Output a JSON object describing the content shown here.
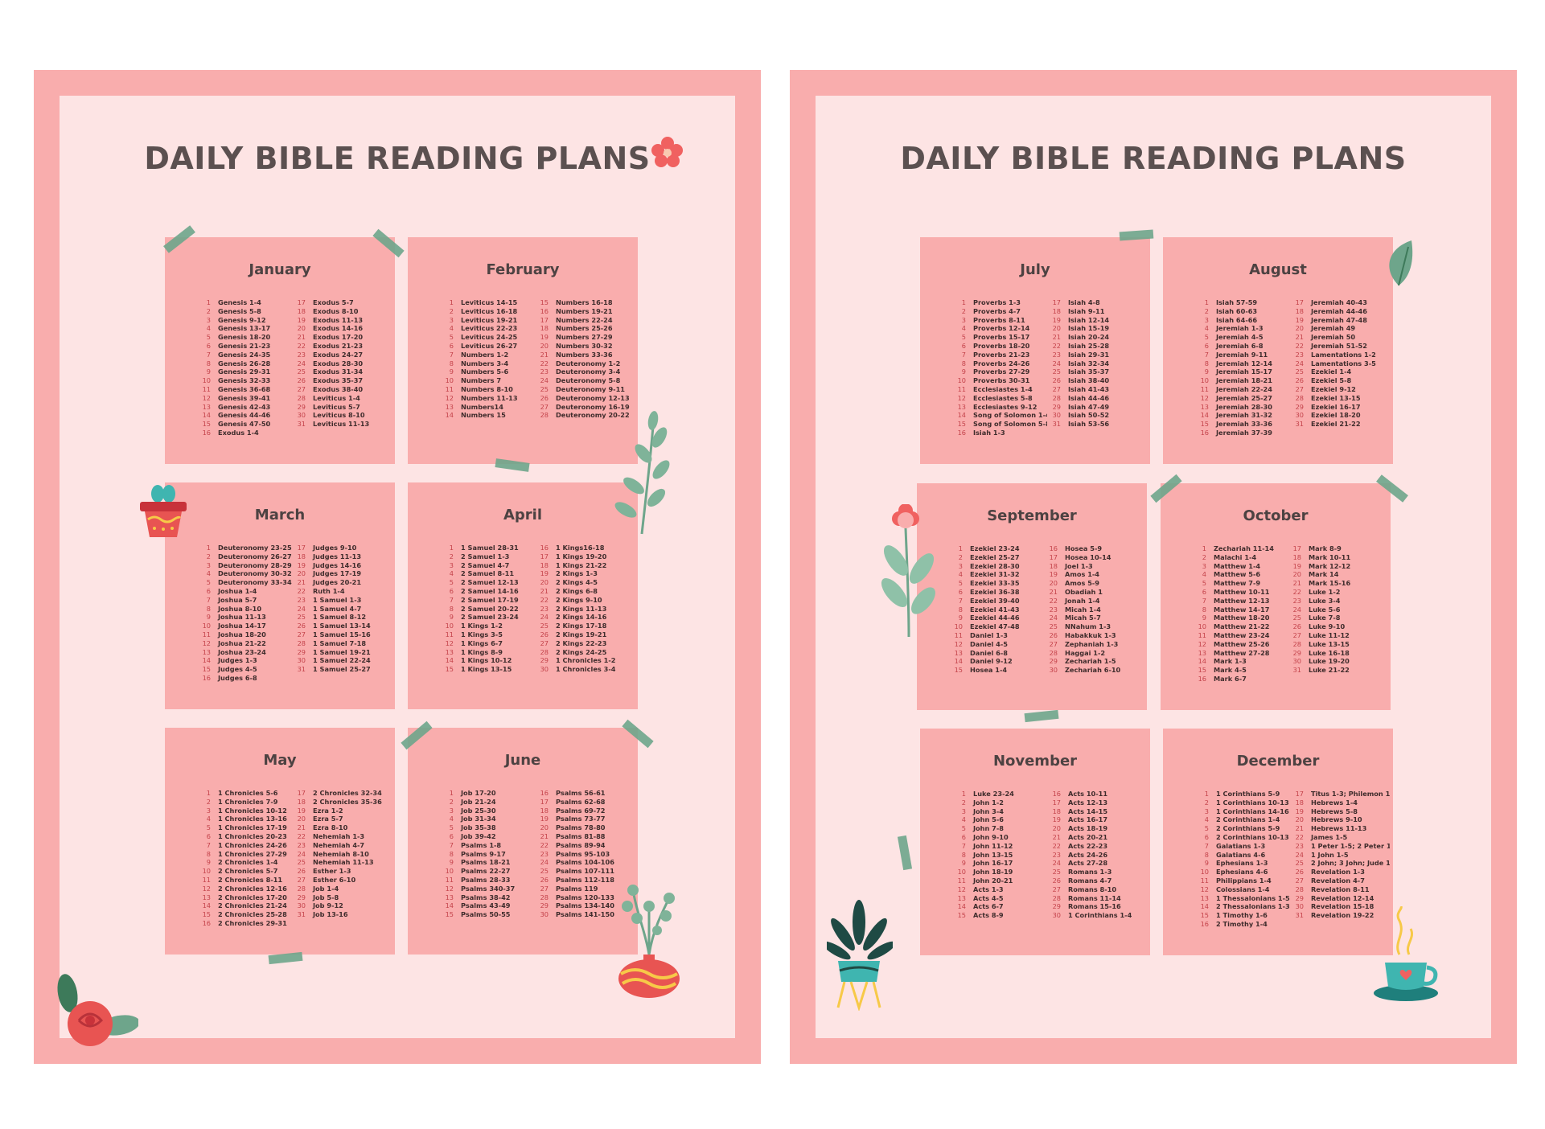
{
  "pages": [
    {
      "title": "DAILY BIBLE READING PLANS",
      "months": [
        {
          "name": "January",
          "left": [
            "Genesis 1-4",
            "Genesis 5-8",
            "Genesis 9-12",
            "Genesis 13-17",
            "Genesis 18-20",
            "Genesis 21-23",
            "Genesis 24-35",
            "Genesis 26-28",
            "Genesis 29-31",
            "Genesis 32-33",
            "Genesis 36-68",
            "Genesis 39-41",
            "Genesis 42-43",
            "Genesis 44-46",
            "Genesis 47-50",
            "Exodus 1-4"
          ],
          "right": [
            "Exodus 5-7",
            "Exodus 8-10",
            "Exodus 11-13",
            "Exodus 14-16",
            "Exodus 17-20",
            "Exodus 21-23",
            "Exodus 24-27",
            "Exodus 28-30",
            "Exodus 31-34",
            "Exodus 35-37",
            "Exodus 38-40",
            "Leviticus 1-4",
            "Leviticus 5-7",
            "Leviticus 8-10",
            "Leviticus 11-13"
          ]
        },
        {
          "name": "February",
          "left": [
            "Leviticus 14-15",
            "Leviticus 16-18",
            "Leviticus 19-21",
            "Leviticus 22-23",
            "Leviticus 24-25",
            "Leviticus 26-27",
            "Numbers 1-2",
            "Numbers 3-4",
            "Numbers 5-6",
            "Numbers 7",
            "Numbers 8-10",
            "Numbers 11-13",
            "Numbers14",
            "Numbers 15"
          ],
          "right": [
            "Numbers 16-18",
            "Numbers 19-21",
            "Numbers 22-24",
            "Numbers 25-26",
            "Numbers 27-29",
            "Numbers 30-32",
            "Numbers 33-36",
            "Deuteronomy 1-2",
            "Deuteronomy 3-4",
            "Deuteronomy 5-8",
            "Deuteronomy 9-11",
            "Deuteronomy 12-13",
            "Deuteronomy 16-19",
            "Deuteronomy 20-22"
          ]
        },
        {
          "name": "March",
          "left": [
            "Deuteronomy 23-25",
            "Deuteronomy 26-27",
            "Deuteronomy 28-29",
            "Deuteronomy 30-32",
            "Deuteronomy 33-34",
            "Joshua 1-4",
            "Joshua 5-7",
            "Joshua 8-10",
            "Joshua 11-13",
            "Joshua 14-17",
            "Joshua 18-20",
            "Joshua 21-22",
            "Joshua 23-24",
            "Judges 1-3",
            "Judges 4-5",
            "Judges 6-8"
          ],
          "right": [
            "Judges 9-10",
            "Judges 11-13",
            "Judges 14-16",
            "Judges 17-19",
            "Judges 20-21",
            "Ruth 1-4",
            "1 Samuel 1-3",
            "1 Samuel 4-7",
            "1 Samuel 8-12",
            "1 Samuel 13-14",
            "1 Samuel 15-16",
            "1 Samuel 7-18",
            "1 Samuel 19-21",
            "1 Samuel 22-24",
            "1 Samuel 25-27"
          ]
        },
        {
          "name": "April",
          "left": [
            "1 Samuel 28-31",
            "2 Samuel 1-3",
            "2 Samuel  4-7",
            "2 Samuel  8-11",
            "2 Samuel 12-13",
            "2 Samuel  14-16",
            "2 Samuel  17-19",
            "2 Samuel  20-22",
            "2 Samuel  23-24",
            "1 Kings 1-2",
            "1 Kings 3-5",
            "1 Kings 6-7",
            "1 Kings 8-9",
            "1 Kings 10-12",
            "1 Kings 13-15"
          ],
          "right": [
            "1 Kings16-18",
            "1 Kings 19-20",
            "1 Kings 21-22",
            "2 Kings 1-3",
            "2 Kings 4-5",
            "2 Kings 6-8",
            "2 Kings 9-10",
            "2 Kings 11-13",
            "2 Kings 14-16",
            "2 Kings 17-18",
            "2 Kings 19-21",
            "2 Kings 22-23",
            "2 Kings 24-25",
            "1 Chronicles 1-2",
            "1 Chronicles 3-4"
          ]
        },
        {
          "name": "May",
          "left": [
            "1 Chronicles 5-6",
            "1 Chronicles 7-9",
            "1 Chronicles 10-12",
            "1 Chronicles 13-16",
            "1 Chronicles 17-19",
            "1 Chronicles 20-23",
            "1 Chronicles 24-26",
            "1 Chronicles 27-29",
            "2 Chronicles 1-4",
            "2 Chronicles 5-7",
            "2 Chronicles 8-11",
            "2 Chronicles 12-16",
            "2 Chronicles 17-20",
            "2 Chronicles 21-24",
            "2 Chronicles 25-28",
            "2 Chronicles 29-31"
          ],
          "right": [
            "2 Chronicles 32-34",
            "2 Chronicles 35-36",
            "Ezra 1-2",
            "Ezra 5-7",
            "Ezra 8-10",
            "Nehemiah 1-3",
            "Nehemiah 4-7",
            "Nehemiah 8-10",
            "Nehemiah 11-13",
            "Esther 1-3",
            "Esther 6-10",
            "Job 1-4",
            "Job 5-8",
            "Job 9-12",
            "Job 13-16"
          ]
        },
        {
          "name": "June",
          "left": [
            "Job 17-20",
            "Job  21-24",
            "Job  25-30",
            "Job  31-34",
            "Job  35-38",
            "Job  39-42",
            "Psalms 1-8",
            "Psalms 9-17",
            "Psalms 18-21",
            "Psalms 22-27",
            "Psalms 28-33",
            "Psalms 340-37",
            "Psalms 38-42",
            "Psalms 43-49",
            "Psalms 50-55"
          ],
          "right": [
            "Psalms 56-61",
            "Psalms 62-68",
            "Psalms 69-72",
            "Psalms 73-77",
            "Psalms 78-80",
            "Psalms 81-88",
            "Psalms 89-94",
            "Psalms 95-103",
            "Psalms 104-106",
            "Psalms 107-111",
            "Psalms 112-118",
            "Psalms 119",
            "Psalms 120-133",
            "Psalms 134-140",
            "Psalms 141-150"
          ]
        }
      ]
    },
    {
      "title": "DAILY BIBLE READING PLANS",
      "months": [
        {
          "name": "July",
          "left": [
            "Proverbs 1-3",
            "Proverbs 4-7",
            "Proverbs 8-11",
            "Proverbs 12-14",
            "Proverbs 15-17",
            "Proverbs 18-20",
            "Proverbs 21-23",
            "Proverbs 24-26",
            "Proverbs 27-29",
            "Proverbs 30-31",
            "Ecclesiastes 1-4",
            "Ecclesiastes 5-8",
            "Ecclesiastes 9-12",
            "Song of Solomon 1-4",
            "Song of Solomon  5-8",
            "Isiah 1-3"
          ],
          "right": [
            "Isiah 4-8",
            "Isiah 9-11",
            "Isiah 12-14",
            "Isiah 15-19",
            "Isiah 20-24",
            "Isiah 25-28",
            "Isiah 29-31",
            "Isiah 32-34",
            "Isiah 35-37",
            "Isiah 38-40",
            "Isiah 41-43",
            "Isiah 44-46",
            "Isiah 47-49",
            "Isiah 50-52",
            "Isiah 53-56"
          ]
        },
        {
          "name": "August",
          "left": [
            "Isiah 57-59",
            "Isiah 60-63",
            "Isiah 64-66",
            "Jeremiah 1-3",
            "Jeremiah 4-5",
            "Jeremiah 6-8",
            "Jeremiah 9-11",
            "Jeremiah 12-14",
            "Jeremiah 15-17",
            "Jeremiah 18-21",
            "Jeremiah 22-24",
            "Jeremiah 25-27",
            "Jeremiah 28-30",
            "Jeremiah 31-32",
            "Jeremiah 33-36",
            "Jeremiah 37-39"
          ],
          "right": [
            "Jeremiah 40-43",
            "Jeremiah 44-46",
            "Jeremiah 47-48",
            "Jeremiah 49",
            "Jeremiah 50",
            "Jeremiah 51-52",
            "Lamentations 1-2",
            "Lamentations 3-5",
            "Ezekiel 1-4",
            "Ezekiel 5-8",
            "Ezekiel 9-12",
            "Ezekiel 13-15",
            "Ezekiel 16-17",
            "Ezekiel 18-20",
            "Ezekiel 21-22"
          ]
        },
        {
          "name": "September",
          "left": [
            "Ezekiel 23-24",
            "Ezekiel 25-27",
            "Ezekiel 28-30",
            "Ezekiel 31-32",
            "Ezekiel 33-35",
            "Ezekiel 36-38",
            "Ezekiel 39-40",
            "Ezekiel 41-43",
            "Ezekiel 44-46",
            "Ezekiel 47-48",
            "Daniel 1-3",
            "Daniel 4-5",
            "Daniel 6-8",
            "Daniel 9-12",
            "Hosea 1-4"
          ],
          "right": [
            "Hosea  5-9",
            "Hosea  10-14",
            "Joel 1-3",
            "Amos 1-4",
            "Amos 5-9",
            "Obadiah 1",
            "Jonah 1-4",
            "Micah 1-4",
            "Micah 5-7",
            "NNahum 1-3",
            "Habakkuk 1-3",
            "Zephaniah 1-3",
            "Haggai 1-2",
            "Zechariah 1-5",
            "Zechariah 6-10"
          ]
        },
        {
          "name": "October",
          "left": [
            "Zechariah 11-14",
            "Malachi 1-4",
            "Matthew 1-4",
            "Matthew 5-6",
            "Matthew 7-9",
            "Matthew 10-11",
            "Matthew 12-13",
            "Matthew 14-17",
            "Matthew 18-20",
            "Matthew 21-22",
            "Matthew 23-24",
            "Matthew 25-26",
            "Matthew 27-28",
            "Mark 1-3",
            "Mark 4-5",
            "Mark  6-7"
          ],
          "right": [
            "Mark  8-9",
            "Mark  10-11",
            "Mark  12-12",
            "Mark  14",
            "Mark  15-16",
            "Luke 1-2",
            "Luke 3-4",
            "Luke 5-6",
            "Luke 7-8",
            "Luke 9-10",
            "Luke 11-12",
            "Luke 13-15",
            "Luke 16-18",
            "Luke 19-20",
            "Luke 21-22"
          ]
        },
        {
          "name": "November",
          "left": [
            "Luke 23-24",
            "John 1-2",
            "John 3-4",
            "John 5-6",
            "John 7-8",
            "John 9-10",
            "John 11-12",
            "John 13-15",
            "John 16-17",
            "John 18-19",
            "John 20-21",
            "Acts 1-3",
            "Acts 4-5",
            "Acts 6-7",
            "Acts 8-9"
          ],
          "right": [
            "Acts 10-11",
            "Acts 12-13",
            "Acts 14-15",
            "Acts 16-17",
            "Acts 18-19",
            "Acts 20-21",
            "Acts 22-23",
            "Acts 24-26",
            "Acts 27-28",
            "Romans 1-3",
            "Romans 4-7",
            "Romans 8-10",
            "Romans 11-14",
            "Romans 15-16",
            "1 Corinthians 1-4"
          ]
        },
        {
          "name": "December",
          "left": [
            "1 Corinthians 5-9",
            "1 Corinthians 10-13",
            "1 Corinthians 14-16",
            "2 Corinthians 1-4",
            "2 Corinthians 5-9",
            "2 Corinthians 10-13",
            "Galatians 1-3",
            "Galatians 4-6",
            "Ephesians 1-3",
            "Ephesians 4-6",
            "Philippians 1-4",
            "Colossians 1-4",
            "1 Thessalonians 1-5",
            "2 Thessalonians 1-3",
            "1 Timothy 1-6",
            "2 Timothy 1-4"
          ],
          "right": [
            "Titus 1-3; Philemon 1",
            "Hebrews 1-4",
            "Hebrews 5-8",
            "Hebrews 9-10",
            "Hebrews 11-13",
            "James 1-5",
            "1 Peter 1-5; 2 Peter 1-3",
            "1 John 1-5",
            "2 John; 3 John; Jude 1",
            "Revelation 1-3",
            "Revelation 4-7",
            "Revelation 8-11",
            "Revelation 12-14",
            "Revelation 15-18",
            "Revelation 19-22"
          ]
        }
      ]
    }
  ],
  "colors": {
    "frame": "#f9adad",
    "sheet": "#fde4e4",
    "card": "#f9adad",
    "title": "#5b5050",
    "number": "#c4434b",
    "reading": "#3f2c2c",
    "tape": "#6ea58b"
  },
  "decorations": [
    "flower-icon",
    "plant-branch-icon",
    "flower-pot-icon",
    "rose-leaves-icon",
    "vase-plant-icon",
    "leaf-icon",
    "pink-flower-plant-icon",
    "potted-palm-icon",
    "coffee-cup-icon"
  ]
}
